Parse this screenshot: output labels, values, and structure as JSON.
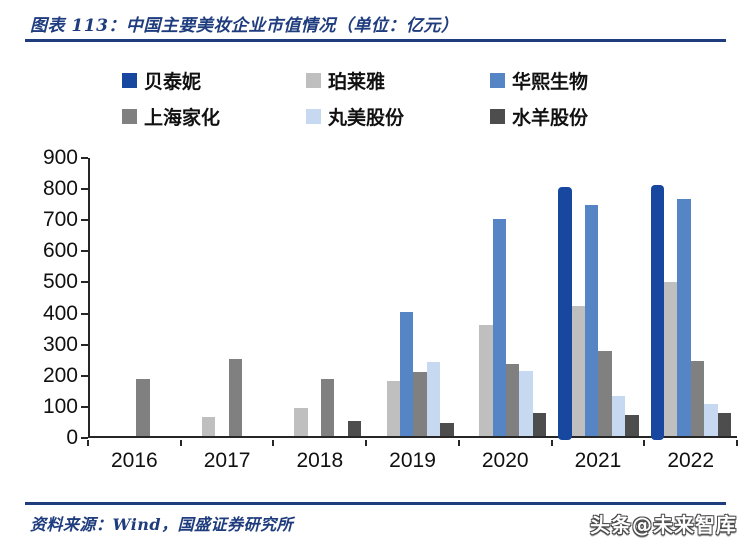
{
  "title": "图表 113：中国主要美妆企业市值情况（单位：亿元）",
  "footer": {
    "source": "资料来源：Wind，国盛证券研究所",
    "watermark": "头条@未来智库"
  },
  "colors": {
    "rule_blue": "#1F3D7E",
    "axis": "#262626"
  },
  "chart_data": {
    "type": "bar",
    "title": "中国主要美妆企业市值情况（单位：亿元）",
    "categories": [
      "2016",
      "2017",
      "2018",
      "2019",
      "2020",
      "2021",
      "2022"
    ],
    "series": [
      {
        "name": "贝泰妮",
        "color": "#17479E",
        "rounded": true,
        "values": [
          null,
          null,
          null,
          null,
          null,
          818,
          825
        ]
      },
      {
        "name": "珀莱雅",
        "color": "#BFBFBF",
        "values": [
          null,
          60,
          90,
          178,
          358,
          420,
          497
        ]
      },
      {
        "name": "华熙生物",
        "color": "#5585C5",
        "values": [
          null,
          null,
          null,
          400,
          703,
          748,
          768
        ]
      },
      {
        "name": "上海家化",
        "color": "#808080",
        "values": [
          185,
          250,
          185,
          208,
          232,
          275,
          242
        ]
      },
      {
        "name": "丸美股份",
        "color": "#C7D9F0",
        "values": [
          null,
          null,
          null,
          240,
          210,
          130,
          103
        ]
      },
      {
        "name": "水羊股份",
        "color": "#4D4D4D",
        "values": [
          null,
          null,
          50,
          42,
          75,
          68,
          75
        ]
      }
    ],
    "xlabel": "",
    "ylabel": "",
    "ylim": [
      0,
      900
    ],
    "ytick_step": 100,
    "grid": false,
    "legend_position": "top"
  }
}
